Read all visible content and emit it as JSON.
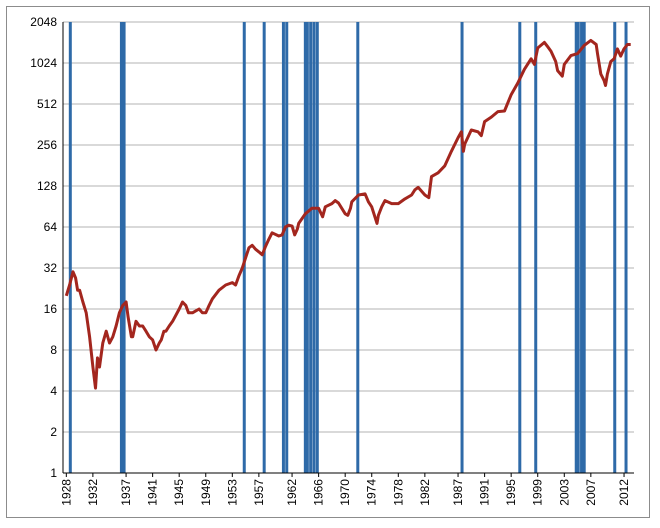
{
  "chart_data": {
    "type": "line",
    "title": "",
    "xlabel": "",
    "ylabel": "",
    "y_scale": "log2",
    "ylim": [
      1,
      2048
    ],
    "xlim": [
      1927.5,
      2013.5
    ],
    "grid": "horizontal",
    "legend": "none",
    "y_ticks": [
      "2048",
      "1024",
      "512",
      "256",
      "128",
      "64",
      "32",
      "16",
      "8",
      "4",
      "2",
      "1"
    ],
    "x_ticks": [
      "1928",
      "1932",
      "1937",
      "1941",
      "1945",
      "1949",
      "1953",
      "1957",
      "1962",
      "1966",
      "1970",
      "1974",
      "1978",
      "1982",
      "1987",
      "1991",
      "1995",
      "1999",
      "2003",
      "2007",
      "2012"
    ],
    "colors": {
      "series": "#a3261e",
      "signals": "#2e6aa8",
      "grid": "#b3b3b3"
    },
    "series": [
      {
        "x": [
          1928.0,
          1928.5,
          1929.0,
          1929.4,
          1929.7,
          1930.0,
          1930.5,
          1931.0,
          1931.5,
          1932.0,
          1932.4,
          1932.7,
          1933.0,
          1933.5,
          1934.0,
          1934.5,
          1935.0,
          1935.5,
          1936.0,
          1936.5,
          1937.0,
          1937.3,
          1937.8,
          1938.0,
          1938.5,
          1939.0,
          1939.5,
          1940.0,
          1940.5,
          1941.0,
          1941.5,
          1942.0,
          1942.3,
          1942.7,
          1943.0,
          1943.5,
          1944.0,
          1945.0,
          1945.5,
          1946.0,
          1946.4,
          1946.8,
          1947.0,
          1948.0,
          1948.5,
          1949.0,
          1949.5,
          1950.0,
          1951.0,
          1952.0,
          1953.0,
          1953.5,
          1954.0,
          1954.5,
          1955.0,
          1955.5,
          1956.0,
          1956.5,
          1957.0,
          1957.5,
          1958.0,
          1958.5,
          1959.0,
          1960.0,
          1960.5,
          1961.0,
          1961.5,
          1962.0,
          1962.4,
          1962.8,
          1963.0,
          1964.0,
          1965.0,
          1966.0,
          1966.6,
          1967.0,
          1968.0,
          1968.5,
          1969.0,
          1970.0,
          1970.4,
          1970.8,
          1971.0,
          1972.0,
          1973.0,
          1973.5,
          1974.0,
          1974.8,
          1975.0,
          1975.5,
          1976.0,
          1977.0,
          1978.0,
          1979.0,
          1980.0,
          1980.5,
          1981.0,
          1982.0,
          1982.6,
          1983.0,
          1984.0,
          1985.0,
          1986.0,
          1987.0,
          1987.5,
          1987.8,
          1988.0,
          1989.0,
          1990.0,
          1990.5,
          1991.0,
          1992.0,
          1993.0,
          1994.0,
          1995.0,
          1996.0,
          1997.0,
          1998.0,
          1998.5,
          1999.0,
          2000.0,
          2000.5,
          2001.0,
          2001.7,
          2002.0,
          2002.7,
          2003.0,
          2004.0,
          2005.0,
          2006.0,
          2007.0,
          2007.8,
          2008.0,
          2008.5,
          2009.0,
          2009.2,
          2009.5,
          2010.0,
          2010.5,
          2011.0,
          2011.5,
          2012.0,
          2012.5,
          2013.0
        ],
        "values": [
          20,
          24,
          30,
          27,
          22,
          22,
          18,
          15,
          10,
          6,
          4.2,
          7,
          6,
          9,
          11,
          9,
          10,
          12,
          15,
          17,
          18,
          14,
          10,
          10,
          13,
          12,
          12,
          11,
          10,
          9.5,
          8,
          9,
          9.5,
          11,
          11,
          12,
          13,
          16,
          18,
          17,
          15,
          15,
          15,
          16,
          15,
          15,
          17,
          19,
          22,
          24,
          25,
          24,
          28,
          32,
          38,
          45,
          47,
          44,
          42,
          40,
          46,
          52,
          58,
          55,
          56,
          64,
          66,
          65,
          56,
          62,
          68,
          80,
          88,
          88,
          76,
          90,
          95,
          100,
          96,
          80,
          78,
          88,
          98,
          110,
          112,
          98,
          90,
          68,
          78,
          90,
          100,
          95,
          95,
          103,
          110,
          120,
          125,
          110,
          105,
          150,
          160,
          180,
          230,
          290,
          320,
          230,
          260,
          330,
          320,
          300,
          380,
          410,
          450,
          455,
          600,
          730,
          920,
          1100,
          1000,
          1320,
          1450,
          1350,
          1250,
          1050,
          900,
          820,
          1000,
          1160,
          1200,
          1380,
          1500,
          1400,
          1200,
          850,
          760,
          700,
          850,
          1050,
          1100,
          1300,
          1150,
          1300,
          1400,
          1400
        ]
      }
    ],
    "signals": [
      1928.6,
      1936.3,
      1936.5,
      1936.7,
      1954.8,
      1957.8,
      1960.7,
      1961.2,
      1964.0,
      1964.3,
      1964.8,
      1965.3,
      1965.8,
      1971.9,
      1987.6,
      1996.3,
      1998.7,
      2004.8,
      2005.1,
      2005.6,
      2006.0,
      2010.6,
      2012.3
    ]
  }
}
